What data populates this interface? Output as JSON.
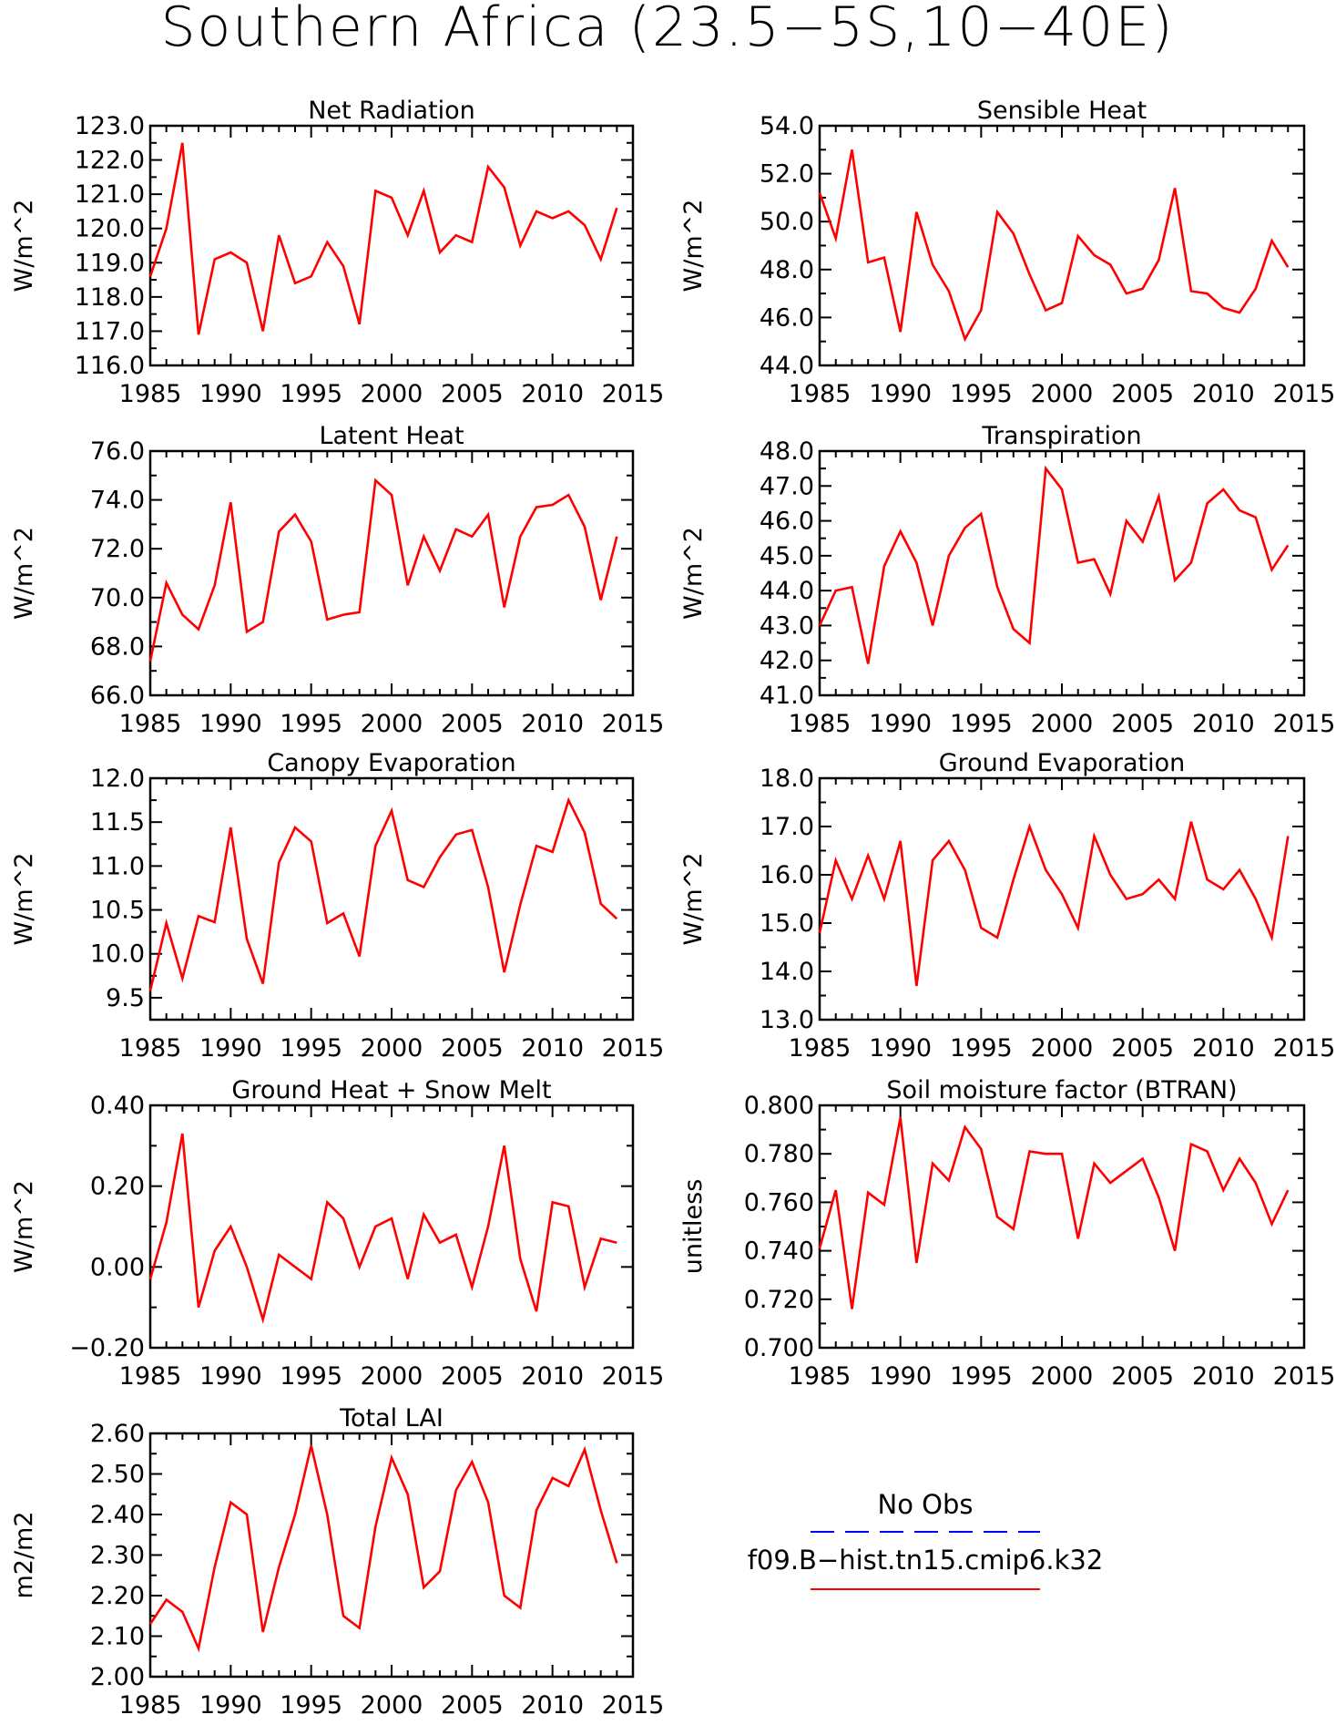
{
  "title": "Southern Africa (23.5−5S,10−40E)",
  "colors": {
    "series": "#ff0000",
    "obs": "#0000ff",
    "axis": "#000000"
  },
  "legend": {
    "obs_label": "No Obs",
    "model_label": "f09.B−hist.tn15.cmip6.k32"
  },
  "chart_data": [
    {
      "type": "line",
      "title": "Net Radiation",
      "ylabel": "W/m^2",
      "xlim": [
        1985,
        2015
      ],
      "ylim": [
        116,
        123
      ],
      "xticks": [
        "1985",
        "1990",
        "1995",
        "2000",
        "2005",
        "2010",
        "2015"
      ],
      "yticks": [
        "116.0",
        "117.0",
        "118.0",
        "119.0",
        "120.0",
        "121.0",
        "122.0",
        "123.0"
      ],
      "x": [
        1985,
        1986,
        1987,
        1988,
        1989,
        1990,
        1991,
        1992,
        1993,
        1994,
        1995,
        1996,
        1997,
        1998,
        1999,
        2000,
        2001,
        2002,
        2003,
        2004,
        2005,
        2006,
        2007,
        2008,
        2009,
        2010,
        2011,
        2012,
        2013,
        2014
      ],
      "values": [
        118.6,
        120.0,
        122.5,
        116.9,
        119.1,
        119.3,
        119.0,
        117.0,
        119.8,
        118.4,
        118.6,
        119.6,
        118.9,
        117.2,
        121.1,
        120.9,
        119.8,
        121.1,
        119.3,
        119.8,
        119.6,
        121.8,
        121.2,
        119.5,
        120.5,
        120.3,
        120.5,
        120.1,
        119.1,
        120.6
      ]
    },
    {
      "type": "line",
      "title": "Sensible Heat",
      "ylabel": "W/m^2",
      "xlim": [
        1985,
        2015
      ],
      "ylim": [
        44,
        54
      ],
      "xticks": [
        "1985",
        "1990",
        "1995",
        "2000",
        "2005",
        "2010",
        "2015"
      ],
      "yticks": [
        "44.0",
        "46.0",
        "48.0",
        "50.0",
        "52.0",
        "54.0"
      ],
      "x": [
        1985,
        1986,
        1987,
        1988,
        1989,
        1990,
        1991,
        1992,
        1993,
        1994,
        1995,
        1996,
        1997,
        1998,
        1999,
        2000,
        2001,
        2002,
        2003,
        2004,
        2005,
        2006,
        2007,
        2008,
        2009,
        2010,
        2011,
        2012,
        2013,
        2014
      ],
      "values": [
        51.2,
        49.3,
        53.0,
        48.3,
        48.5,
        45.4,
        50.4,
        48.2,
        47.1,
        45.1,
        46.3,
        50.4,
        49.5,
        47.8,
        46.3,
        46.6,
        49.4,
        48.6,
        48.2,
        47.0,
        47.2,
        48.4,
        51.4,
        47.1,
        47.0,
        46.4,
        46.2,
        47.2,
        49.2,
        48.1
      ]
    },
    {
      "type": "line",
      "title": "Latent Heat",
      "ylabel": "W/m^2",
      "xlim": [
        1985,
        2015
      ],
      "ylim": [
        66,
        76
      ],
      "xticks": [
        "1985",
        "1990",
        "1995",
        "2000",
        "2005",
        "2010",
        "2015"
      ],
      "yticks": [
        "66.0",
        "68.0",
        "70.0",
        "72.0",
        "74.0",
        "76.0"
      ],
      "x": [
        1985,
        1986,
        1987,
        1988,
        1989,
        1990,
        1991,
        1992,
        1993,
        1994,
        1995,
        1996,
        1997,
        1998,
        1999,
        2000,
        2001,
        2002,
        2003,
        2004,
        2005,
        2006,
        2007,
        2008,
        2009,
        2010,
        2011,
        2012,
        2013,
        2014
      ],
      "values": [
        67.4,
        70.6,
        69.3,
        68.7,
        70.5,
        73.9,
        68.6,
        69.0,
        72.7,
        73.4,
        72.3,
        69.1,
        69.3,
        69.4,
        74.8,
        74.2,
        70.5,
        72.5,
        71.1,
        72.8,
        72.5,
        73.4,
        69.6,
        72.5,
        73.7,
        73.8,
        74.2,
        72.9,
        69.9,
        72.5
      ]
    },
    {
      "type": "line",
      "title": "Transpiration",
      "ylabel": "W/m^2",
      "xlim": [
        1985,
        2015
      ],
      "ylim": [
        41,
        48
      ],
      "xticks": [
        "1985",
        "1990",
        "1995",
        "2000",
        "2005",
        "2010",
        "2015"
      ],
      "yticks": [
        "41.0",
        "42.0",
        "43.0",
        "44.0",
        "45.0",
        "46.0",
        "47.0",
        "48.0"
      ],
      "x": [
        1985,
        1986,
        1987,
        1988,
        1989,
        1990,
        1991,
        1992,
        1993,
        1994,
        1995,
        1996,
        1997,
        1998,
        1999,
        2000,
        2001,
        2002,
        2003,
        2004,
        2005,
        2006,
        2007,
        2008,
        2009,
        2010,
        2011,
        2012,
        2013,
        2014
      ],
      "values": [
        43.0,
        44.0,
        44.1,
        41.9,
        44.7,
        45.7,
        44.8,
        43.0,
        45.0,
        45.8,
        46.2,
        44.1,
        42.9,
        42.5,
        47.5,
        46.9,
        44.8,
        44.9,
        43.9,
        46.0,
        45.4,
        46.7,
        44.3,
        44.8,
        46.5,
        46.9,
        46.3,
        46.1,
        44.6,
        45.3
      ]
    },
    {
      "type": "line",
      "title": "Canopy Evaporation",
      "ylabel": "W/m^2",
      "xlim": [
        1985,
        2015
      ],
      "ylim": [
        9.25,
        12
      ],
      "xticks": [
        "1985",
        "1990",
        "1995",
        "2000",
        "2005",
        "2010",
        "2015"
      ],
      "yticks": [
        "9.5",
        "10.0",
        "10.5",
        "11.0",
        "11.5",
        "12.0"
      ],
      "x": [
        1985,
        1986,
        1987,
        1988,
        1989,
        1990,
        1991,
        1992,
        1993,
        1994,
        1995,
        1996,
        1997,
        1998,
        1999,
        2000,
        2001,
        2002,
        2003,
        2004,
        2005,
        2006,
        2007,
        2008,
        2009,
        2010,
        2011,
        2012,
        2013,
        2014
      ],
      "values": [
        9.58,
        10.35,
        9.72,
        10.43,
        10.36,
        11.44,
        10.17,
        9.66,
        11.04,
        11.44,
        11.28,
        10.35,
        10.46,
        9.97,
        11.23,
        11.63,
        10.84,
        10.76,
        11.1,
        11.36,
        11.41,
        10.76,
        9.79,
        10.56,
        11.23,
        11.16,
        11.75,
        11.38,
        10.57,
        10.4
      ]
    },
    {
      "type": "line",
      "title": "Ground Evaporation",
      "ylabel": "W/m^2",
      "xlim": [
        1985,
        2015
      ],
      "ylim": [
        13,
        18
      ],
      "xticks": [
        "1985",
        "1990",
        "1995",
        "2000",
        "2005",
        "2010",
        "2015"
      ],
      "yticks": [
        "13.0",
        "14.0",
        "15.0",
        "16.0",
        "17.0",
        "18.0"
      ],
      "x": [
        1985,
        1986,
        1987,
        1988,
        1989,
        1990,
        1991,
        1992,
        1993,
        1994,
        1995,
        1996,
        1997,
        1998,
        1999,
        2000,
        2001,
        2002,
        2003,
        2004,
        2005,
        2006,
        2007,
        2008,
        2009,
        2010,
        2011,
        2012,
        2013,
        2014
      ],
      "values": [
        14.8,
        16.3,
        15.5,
        16.4,
        15.5,
        16.7,
        13.7,
        16.3,
        16.7,
        16.1,
        14.9,
        14.7,
        15.9,
        17.0,
        16.1,
        15.6,
        14.9,
        16.8,
        16.0,
        15.5,
        15.6,
        15.9,
        15.5,
        17.1,
        15.9,
        15.7,
        16.1,
        15.5,
        14.7,
        16.8
      ]
    },
    {
      "type": "line",
      "title": "Ground Heat + Snow Melt",
      "ylabel": "W/m^2",
      "xlim": [
        1985,
        2015
      ],
      "ylim": [
        -0.2,
        0.4
      ],
      "xticks": [
        "1985",
        "1990",
        "1995",
        "2000",
        "2005",
        "2010",
        "2015"
      ],
      "yticks": [
        "−0.20",
        "0.00",
        "0.20",
        "0.40"
      ],
      "x": [
        1985,
        1986,
        1987,
        1988,
        1989,
        1990,
        1991,
        1992,
        1993,
        1994,
        1995,
        1996,
        1997,
        1998,
        1999,
        2000,
        2001,
        2002,
        2003,
        2004,
        2005,
        2006,
        2007,
        2008,
        2009,
        2010,
        2011,
        2012,
        2013,
        2014
      ],
      "values": [
        -0.03,
        0.11,
        0.33,
        -0.1,
        0.04,
        0.1,
        0.0,
        -0.13,
        0.03,
        0.0,
        -0.03,
        0.16,
        0.12,
        0.0,
        0.1,
        0.12,
        -0.03,
        0.13,
        0.06,
        0.08,
        -0.05,
        0.1,
        0.3,
        0.02,
        -0.11,
        0.16,
        0.15,
        -0.05,
        0.07,
        0.06
      ]
    },
    {
      "type": "line",
      "title": "Soil moisture factor (BTRAN)",
      "ylabel": "unitless",
      "xlim": [
        1985,
        2015
      ],
      "ylim": [
        0.7,
        0.8
      ],
      "xticks": [
        "1985",
        "1990",
        "1995",
        "2000",
        "2005",
        "2010",
        "2015"
      ],
      "yticks": [
        "0.700",
        "0.720",
        "0.740",
        "0.760",
        "0.780",
        "0.800"
      ],
      "x": [
        1985,
        1986,
        1987,
        1988,
        1989,
        1990,
        1991,
        1992,
        1993,
        1994,
        1995,
        1996,
        1997,
        1998,
        1999,
        2000,
        2001,
        2002,
        2003,
        2004,
        2005,
        2006,
        2007,
        2008,
        2009,
        2010,
        2011,
        2012,
        2013,
        2014
      ],
      "values": [
        0.741,
        0.765,
        0.716,
        0.764,
        0.759,
        0.795,
        0.735,
        0.776,
        0.769,
        0.791,
        0.782,
        0.754,
        0.749,
        0.781,
        0.78,
        0.78,
        0.745,
        0.776,
        0.768,
        0.773,
        0.778,
        0.762,
        0.74,
        0.784,
        0.781,
        0.765,
        0.778,
        0.768,
        0.751,
        0.765
      ]
    },
    {
      "type": "line",
      "title": "Total LAI",
      "ylabel": "m2/m2",
      "xlim": [
        1985,
        2015
      ],
      "ylim": [
        2.0,
        2.6
      ],
      "xticks": [
        "1985",
        "1990",
        "1995",
        "2000",
        "2005",
        "2010",
        "2015"
      ],
      "yticks": [
        "2.00",
        "2.10",
        "2.20",
        "2.30",
        "2.40",
        "2.50",
        "2.60"
      ],
      "x": [
        1985,
        1986,
        1987,
        1988,
        1989,
        1990,
        1991,
        1992,
        1993,
        1994,
        1995,
        1996,
        1997,
        1998,
        1999,
        2000,
        2001,
        2002,
        2003,
        2004,
        2005,
        2006,
        2007,
        2008,
        2009,
        2010,
        2011,
        2012,
        2013,
        2014
      ],
      "values": [
        2.13,
        2.19,
        2.16,
        2.07,
        2.27,
        2.43,
        2.4,
        2.11,
        2.27,
        2.4,
        2.57,
        2.4,
        2.15,
        2.12,
        2.37,
        2.54,
        2.45,
        2.22,
        2.26,
        2.46,
        2.53,
        2.43,
        2.2,
        2.17,
        2.41,
        2.49,
        2.47,
        2.56,
        2.41,
        2.28
      ]
    }
  ]
}
